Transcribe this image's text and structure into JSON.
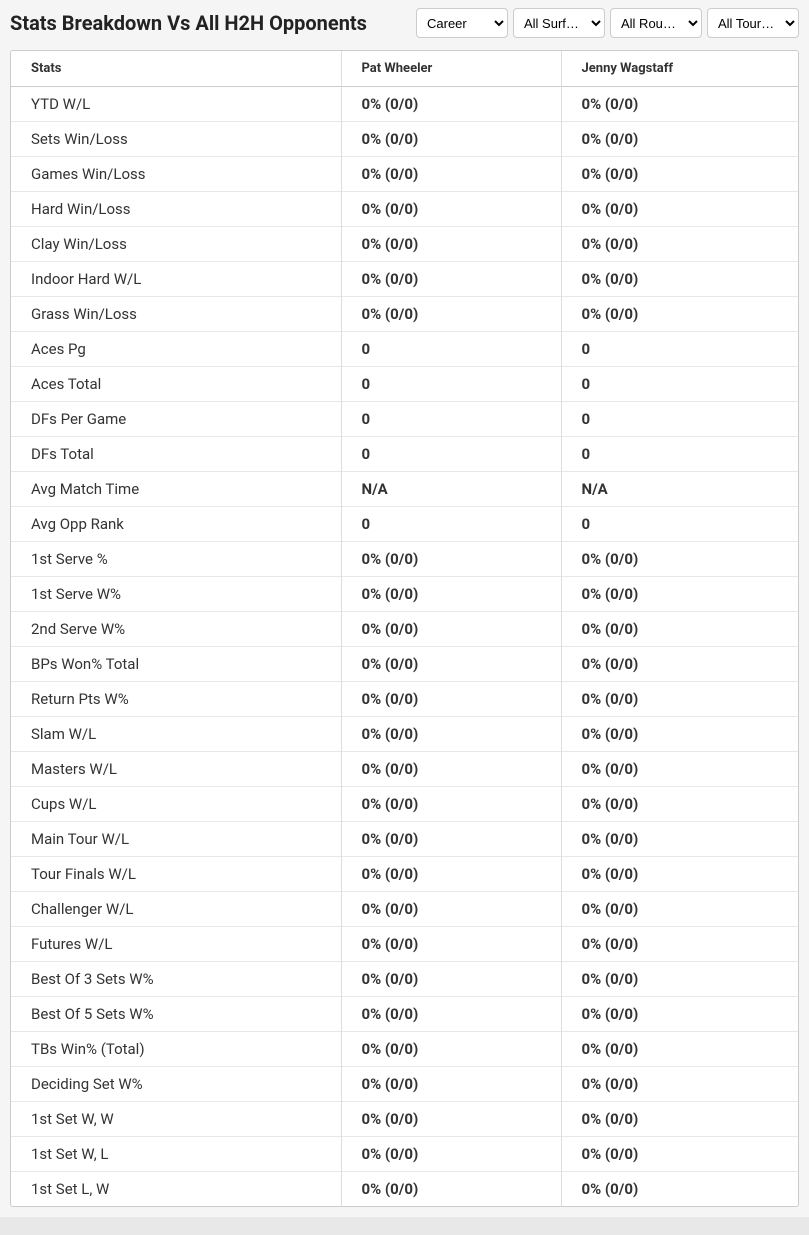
{
  "header": {
    "title": "Stats Breakdown Vs All H2H Opponents"
  },
  "filters": {
    "period": {
      "selected": "Career",
      "options": [
        "Career"
      ]
    },
    "surface": {
      "selected": "All Surf…",
      "options": [
        "All Surf…"
      ]
    },
    "round": {
      "selected": "All Rou…",
      "options": [
        "All Rou…"
      ]
    },
    "tour": {
      "selected": "All Tour…",
      "options": [
        "All Tour…"
      ]
    }
  },
  "table": {
    "headers": {
      "stats": "Stats",
      "player1": "Pat Wheeler",
      "player2": "Jenny Wagstaff"
    },
    "rows": [
      {
        "label": "YTD W/L",
        "p1": "0% (0/0)",
        "p2": "0% (0/0)"
      },
      {
        "label": "Sets Win/Loss",
        "p1": "0% (0/0)",
        "p2": "0% (0/0)"
      },
      {
        "label": "Games Win/Loss",
        "p1": "0% (0/0)",
        "p2": "0% (0/0)"
      },
      {
        "label": "Hard Win/Loss",
        "p1": "0% (0/0)",
        "p2": "0% (0/0)"
      },
      {
        "label": "Clay Win/Loss",
        "p1": "0% (0/0)",
        "p2": "0% (0/0)"
      },
      {
        "label": "Indoor Hard W/L",
        "p1": "0% (0/0)",
        "p2": "0% (0/0)"
      },
      {
        "label": "Grass Win/Loss",
        "p1": "0% (0/0)",
        "p2": "0% (0/0)"
      },
      {
        "label": "Aces Pg",
        "p1": "0",
        "p2": "0"
      },
      {
        "label": "Aces Total",
        "p1": "0",
        "p2": "0"
      },
      {
        "label": "DFs Per Game",
        "p1": "0",
        "p2": "0"
      },
      {
        "label": "DFs Total",
        "p1": "0",
        "p2": "0"
      },
      {
        "label": "Avg Match Time",
        "p1": "N/A",
        "p2": "N/A"
      },
      {
        "label": "Avg Opp Rank",
        "p1": "0",
        "p2": "0"
      },
      {
        "label": "1st Serve %",
        "p1": "0% (0/0)",
        "p2": "0% (0/0)"
      },
      {
        "label": "1st Serve W%",
        "p1": "0% (0/0)",
        "p2": "0% (0/0)"
      },
      {
        "label": "2nd Serve W%",
        "p1": "0% (0/0)",
        "p2": "0% (0/0)"
      },
      {
        "label": "BPs Won% Total",
        "p1": "0% (0/0)",
        "p2": "0% (0/0)"
      },
      {
        "label": "Return Pts W%",
        "p1": "0% (0/0)",
        "p2": "0% (0/0)"
      },
      {
        "label": "Slam W/L",
        "p1": "0% (0/0)",
        "p2": "0% (0/0)"
      },
      {
        "label": "Masters W/L",
        "p1": "0% (0/0)",
        "p2": "0% (0/0)"
      },
      {
        "label": "Cups W/L",
        "p1": "0% (0/0)",
        "p2": "0% (0/0)"
      },
      {
        "label": "Main Tour W/L",
        "p1": "0% (0/0)",
        "p2": "0% (0/0)"
      },
      {
        "label": "Tour Finals W/L",
        "p1": "0% (0/0)",
        "p2": "0% (0/0)"
      },
      {
        "label": "Challenger W/L",
        "p1": "0% (0/0)",
        "p2": "0% (0/0)"
      },
      {
        "label": "Futures W/L",
        "p1": "0% (0/0)",
        "p2": "0% (0/0)"
      },
      {
        "label": "Best Of 3 Sets W%",
        "p1": "0% (0/0)",
        "p2": "0% (0/0)"
      },
      {
        "label": "Best Of 5 Sets W%",
        "p1": "0% (0/0)",
        "p2": "0% (0/0)"
      },
      {
        "label": "TBs Win% (Total)",
        "p1": "0% (0/0)",
        "p2": "0% (0/0)"
      },
      {
        "label": "Deciding Set W%",
        "p1": "0% (0/0)",
        "p2": "0% (0/0)"
      },
      {
        "label": "1st Set W, W",
        "p1": "0% (0/0)",
        "p2": "0% (0/0)"
      },
      {
        "label": "1st Set W, L",
        "p1": "0% (0/0)",
        "p2": "0% (0/0)"
      },
      {
        "label": "1st Set L, W",
        "p1": "0% (0/0)",
        "p2": "0% (0/0)"
      }
    ]
  }
}
